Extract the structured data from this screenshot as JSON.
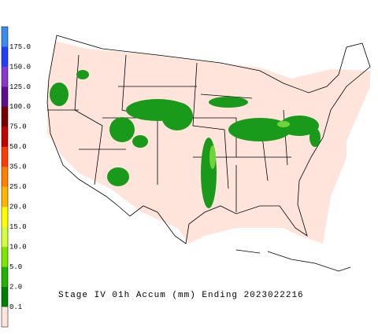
{
  "title": "Stage IV 01h Accum (mm) Ending 2023022216",
  "legend": {
    "labels": [
      "175.0",
      "150.0",
      "125.0",
      "100.0",
      "75.0",
      "50.0",
      "35.0",
      "25.0",
      "20.0",
      "15.0",
      "10.0",
      "5.0",
      "2.0",
      "0.1"
    ],
    "colors": [
      "#3c8cf0",
      "#2040ff",
      "#8838d0",
      "#5c1090",
      "#7a0000",
      "#c40000",
      "#ff3c00",
      "#ff8000",
      "#ffb400",
      "#ffff00",
      "#d4ff3c",
      "#7ce800",
      "#20b400",
      "#008000",
      "#ffe4dc"
    ]
  }
}
